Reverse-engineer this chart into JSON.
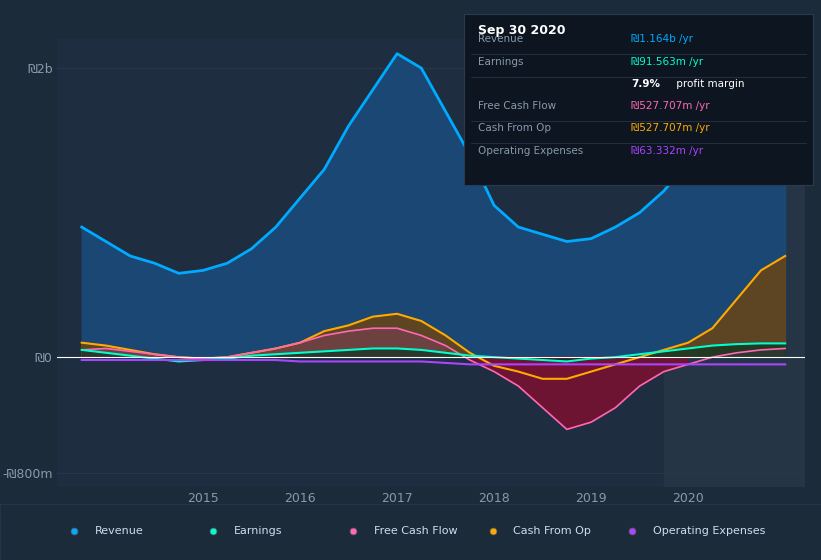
{
  "bg_color": "#1c2b3a",
  "chart_bg": "#1e2d40",
  "grid_color": "#2a3a50",
  "zero_line_color": "#ffffff",
  "y_label_color": "#8899aa",
  "x_label_color": "#8899aa",
  "border_color": "#2a3a50",
  "years": [
    2013.75,
    2014.0,
    2014.25,
    2014.5,
    2014.75,
    2015.0,
    2015.25,
    2015.5,
    2015.75,
    2016.0,
    2016.25,
    2016.5,
    2016.75,
    2017.0,
    2017.25,
    2017.5,
    2017.75,
    2018.0,
    2018.25,
    2018.5,
    2018.75,
    2019.0,
    2019.25,
    2019.5,
    2019.75,
    2020.0,
    2020.25,
    2020.5,
    2020.75,
    2021.0
  ],
  "revenue": [
    900,
    800,
    700,
    650,
    580,
    600,
    650,
    750,
    900,
    1100,
    1300,
    1600,
    1850,
    2100,
    2000,
    1700,
    1400,
    1050,
    900,
    850,
    800,
    820,
    900,
    1000,
    1150,
    1350,
    1500,
    1600,
    1650,
    1650
  ],
  "earnings": [
    50,
    30,
    10,
    -10,
    -30,
    -20,
    -10,
    10,
    20,
    30,
    40,
    50,
    60,
    60,
    50,
    30,
    10,
    0,
    -10,
    -20,
    -30,
    -10,
    0,
    20,
    40,
    60,
    80,
    90,
    95,
    95
  ],
  "free_cash_flow": [
    50,
    60,
    40,
    20,
    0,
    -10,
    0,
    30,
    60,
    100,
    150,
    180,
    200,
    200,
    150,
    80,
    -20,
    -100,
    -200,
    -350,
    -500,
    -450,
    -350,
    -200,
    -100,
    -50,
    0,
    30,
    50,
    60
  ],
  "cash_from_op": [
    100,
    80,
    50,
    20,
    0,
    -10,
    0,
    30,
    60,
    100,
    180,
    220,
    280,
    300,
    250,
    150,
    30,
    -60,
    -100,
    -150,
    -150,
    -100,
    -50,
    0,
    50,
    100,
    200,
    400,
    600,
    700
  ],
  "operating_expenses": [
    -20,
    -20,
    -20,
    -20,
    -20,
    -20,
    -20,
    -20,
    -20,
    -30,
    -30,
    -30,
    -30,
    -30,
    -30,
    -40,
    -50,
    -50,
    -50,
    -50,
    -50,
    -50,
    -50,
    -50,
    -50,
    -50,
    -50,
    -50,
    -50,
    -50
  ],
  "revenue_color": "#00aaff",
  "revenue_fill": "#1a4a7a",
  "earnings_color": "#00ffcc",
  "earnings_fill": "#003322",
  "free_cash_flow_color": "#ff69b4",
  "free_cash_flow_fill_neg": "#7a1030",
  "free_cash_flow_fill_pos": "#804060",
  "cash_from_op_color": "#ffaa00",
  "cash_from_op_fill_pos": "#7a4400",
  "operating_expenses_color": "#aa44ff",
  "ylim_min": -900,
  "ylim_max": 2200,
  "xlim_min": 2013.5,
  "xlim_max": 2021.2,
  "y_ticks": [
    -800,
    0,
    2000
  ],
  "y_tick_labels": [
    "-₪800m",
    "₪0",
    "₪2b"
  ],
  "x_ticks": [
    2015,
    2016,
    2017,
    2018,
    2019,
    2020
  ],
  "highlight_x_start": 2019.75,
  "highlight_x_end": 2021.2,
  "highlight_color": "#253545",
  "info_box": {
    "title": "Sep 30 2020",
    "title_color": "#ffffff",
    "bg_color": "#0d1520",
    "border_color": "#2a3a50",
    "rows": [
      {
        "label": "Revenue",
        "value": "₪1.164b /yr",
        "value_color": "#00aaff"
      },
      {
        "label": "Earnings",
        "value": "₪91.563m /yr",
        "value_color": "#00ffcc"
      },
      {
        "label": "",
        "value": "7.9% profit margin",
        "value_color": "#ffffff"
      },
      {
        "label": "Free Cash Flow",
        "value": "₪527.707m /yr",
        "value_color": "#ff69b4"
      },
      {
        "label": "Cash From Op",
        "value": "₪527.707m /yr",
        "value_color": "#ffaa00"
      },
      {
        "label": "Operating Expenses",
        "value": "₪63.332m /yr",
        "value_color": "#aa44ff"
      }
    ]
  },
  "legend": [
    {
      "label": "Revenue",
      "color": "#00aaff"
    },
    {
      "label": "Earnings",
      "color": "#00ffcc"
    },
    {
      "label": "Free Cash Flow",
      "color": "#ff69b4"
    },
    {
      "label": "Cash From Op",
      "color": "#ffaa00"
    },
    {
      "label": "Operating Expenses",
      "color": "#aa44ff"
    }
  ]
}
